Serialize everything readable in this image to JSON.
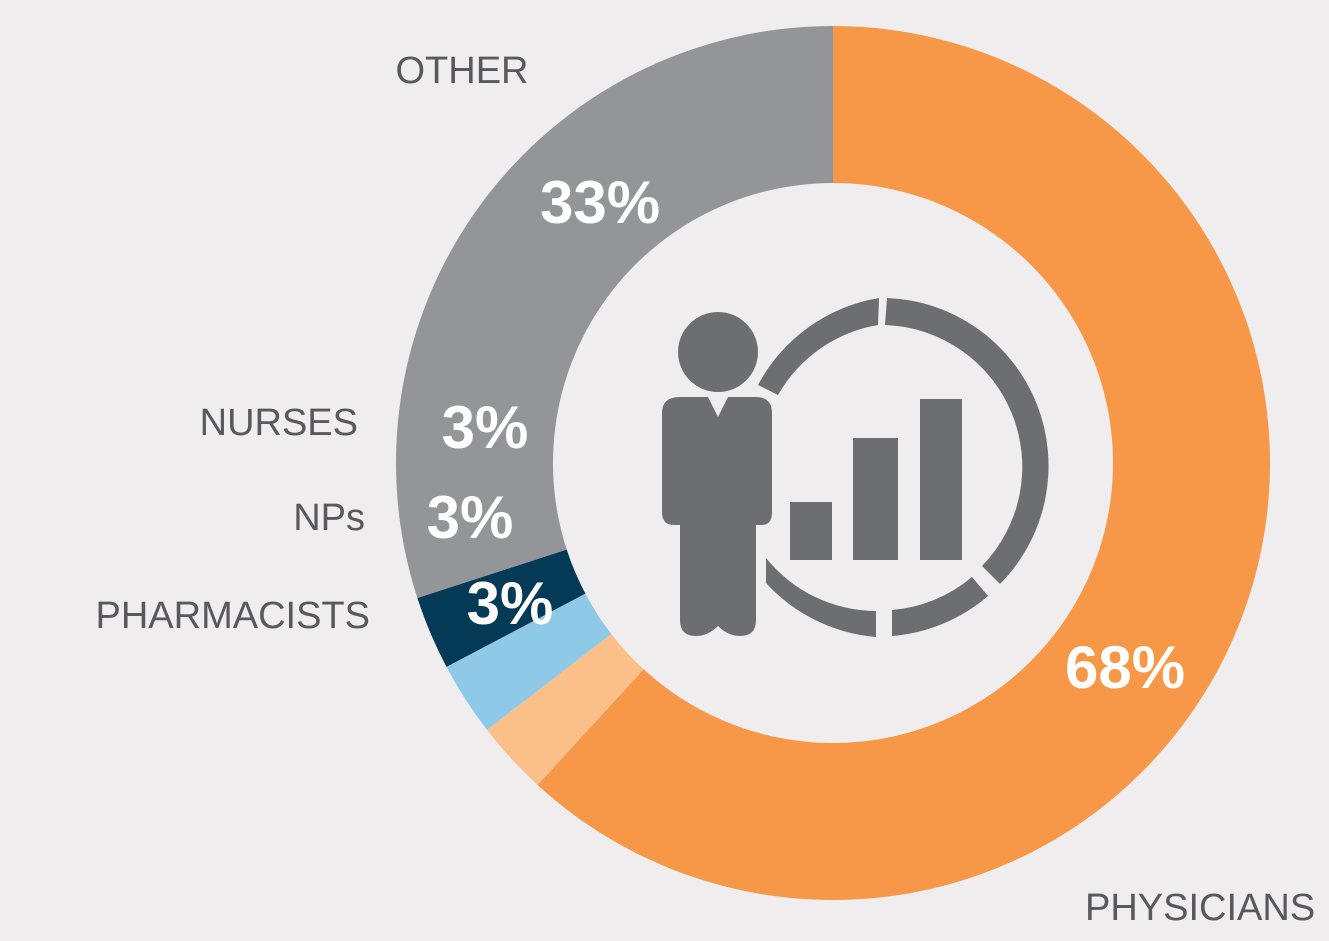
{
  "chart_data": {
    "type": "donut",
    "categories": [
      "PHYSICIANS",
      "PHARMACISTS",
      "NPs",
      "NURSES",
      "OTHER"
    ],
    "values": [
      68,
      3,
      3,
      3,
      33
    ],
    "value_labels": [
      "68%",
      "3%",
      "3%",
      "3%",
      "33%"
    ],
    "colors": [
      "#f79848",
      "#fbbf8a",
      "#8ecae8",
      "#053a57",
      "#939598"
    ]
  }
}
